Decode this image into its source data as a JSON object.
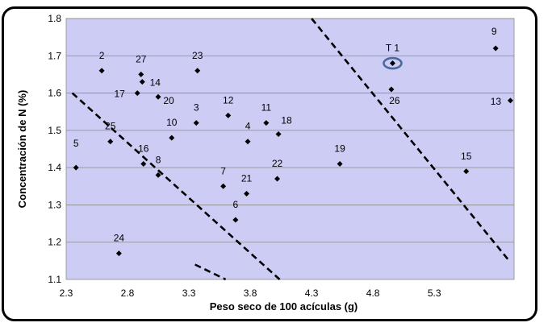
{
  "chart_data": {
    "type": "scatter",
    "title": "",
    "xlabel": "Peso seco de 100 acículas (g)",
    "ylabel": "Concentración de N (%)",
    "xlim": [
      2.3,
      5.95
    ],
    "ylim": [
      1.1,
      1.8
    ],
    "xticks": [
      "2.3",
      "2.8",
      "3.3",
      "3.8",
      "4.3",
      "4.8",
      "5.3"
    ],
    "yticks": [
      "1.1",
      "1.2",
      "1.3",
      "1.4",
      "1.5",
      "1.6",
      "1.7",
      "1.8"
    ],
    "grid": "horizontal",
    "background_color": "#ccccf5",
    "marker_color": "#000000",
    "highlight_color": "#4a6a9a",
    "points": [
      {
        "label": "2",
        "x": 2.59,
        "y": 1.66
      },
      {
        "label": "27",
        "x": 2.91,
        "y": 1.65
      },
      {
        "label": "14",
        "x": 2.92,
        "y": 1.63
      },
      {
        "label": "17",
        "x": 2.88,
        "y": 1.6
      },
      {
        "label": "20",
        "x": 3.05,
        "y": 1.59
      },
      {
        "label": "23",
        "x": 3.37,
        "y": 1.66
      },
      {
        "label": "12",
        "x": 3.62,
        "y": 1.54
      },
      {
        "label": "3",
        "x": 3.36,
        "y": 1.52
      },
      {
        "label": "11",
        "x": 3.93,
        "y": 1.52
      },
      {
        "label": "4",
        "x": 3.78,
        "y": 1.47
      },
      {
        "label": "18",
        "x": 4.03,
        "y": 1.49
      },
      {
        "label": "10",
        "x": 3.16,
        "y": 1.48
      },
      {
        "label": "25",
        "x": 2.66,
        "y": 1.47
      },
      {
        "label": "5",
        "x": 2.38,
        "y": 1.4
      },
      {
        "label": "16",
        "x": 2.93,
        "y": 1.41
      },
      {
        "label": "8",
        "x": 3.05,
        "y": 1.38
      },
      {
        "label": "7",
        "x": 3.58,
        "y": 1.35
      },
      {
        "label": "21",
        "x": 3.77,
        "y": 1.33
      },
      {
        "label": "22",
        "x": 4.02,
        "y": 1.37
      },
      {
        "label": "19",
        "x": 4.53,
        "y": 1.41
      },
      {
        "label": "6",
        "x": 3.68,
        "y": 1.26
      },
      {
        "label": "24",
        "x": 2.73,
        "y": 1.17
      },
      {
        "label": "T 1",
        "x": 4.96,
        "y": 1.68
      },
      {
        "label": "26",
        "x": 4.95,
        "y": 1.61
      },
      {
        "label": "9",
        "x": 5.8,
        "y": 1.72
      },
      {
        "label": "13",
        "x": 5.92,
        "y": 1.58
      },
      {
        "label": "15",
        "x": 5.56,
        "y": 1.39
      }
    ],
    "highlighted": "T 1",
    "dashed_lines": [
      {
        "x1": 2.35,
        "y1": 1.6,
        "x2": 4.04,
        "y2": 1.1
      },
      {
        "x1": 3.35,
        "y1": 1.14,
        "x2": 3.6,
        "y2": 1.1
      },
      {
        "x1": 4.3,
        "y1": 1.8,
        "x2": 5.91,
        "y2": 1.15
      }
    ]
  }
}
